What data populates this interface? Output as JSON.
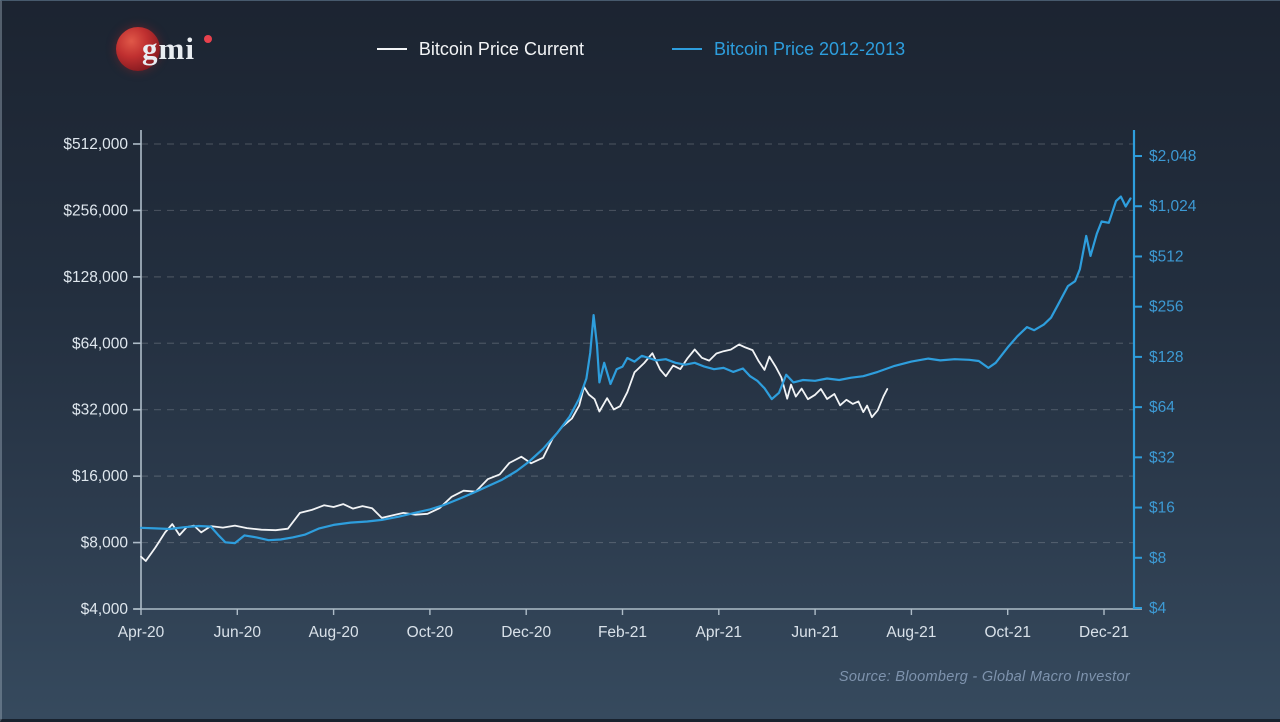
{
  "branding": {
    "logo_text": "gmi"
  },
  "legend": {
    "items": [
      {
        "label": "Bitcoin Price Current",
        "color": "#f2f4f6"
      },
      {
        "label": "Bitcoin Price 2012-2013",
        "color": "#2e9edd"
      }
    ]
  },
  "source_note": "Source: Bloomberg - Global Macro Investor",
  "colors": {
    "background_top": "#1c2431",
    "background_bottom": "#364a5e",
    "gridline": "rgba(255,255,255,0.17)",
    "axis_line": "#aebcc8",
    "right_axis_line": "#2e9edd",
    "left_tick_text": "#dfe7ee",
    "right_tick_text": "#3d9ad4",
    "x_tick_text": "#d9e1e9"
  },
  "chart_data": {
    "type": "line",
    "scale": "log2",
    "grid": "horizontal-dashed",
    "legend_position": "top-center",
    "x_axis": {
      "labels": [
        "Apr-20",
        "Jun-20",
        "Aug-20",
        "Oct-20",
        "Dec-20",
        "Feb-21",
        "Apr-21",
        "Jun-21",
        "Aug-21",
        "Oct-21",
        "Dec-21"
      ],
      "label_month_offsets": [
        0,
        2,
        4,
        6,
        8,
        10,
        12,
        14,
        16,
        18,
        20
      ],
      "months_span": [
        0,
        20.6
      ]
    },
    "left_axis": {
      "unit": "USD (current cycle)",
      "range": [
        4000,
        512000
      ],
      "ticks": [
        {
          "label": "$512,000",
          "value": 512000
        },
        {
          "label": "$256,000",
          "value": 256000
        },
        {
          "label": "$128,000",
          "value": 128000
        },
        {
          "label": "$64,000",
          "value": 64000
        },
        {
          "label": "$32,000",
          "value": 32000
        },
        {
          "label": "$16,000",
          "value": 16000
        },
        {
          "label": "$8,000",
          "value": 8000
        },
        {
          "label": "$4,000",
          "value": 4000
        }
      ]
    },
    "right_axis": {
      "unit": "USD (2012-2013 cycle)",
      "range": [
        4,
        2048
      ],
      "ticks": [
        {
          "label": "$2,048",
          "value": 2048
        },
        {
          "label": "$1,024",
          "value": 1024
        },
        {
          "label": "$512",
          "value": 512
        },
        {
          "label": "$256",
          "value": 256
        },
        {
          "label": "$128",
          "value": 128
        },
        {
          "label": "$64",
          "value": 64
        },
        {
          "label": "$32",
          "value": 32
        },
        {
          "label": "$16",
          "value": 16
        },
        {
          "label": "$8",
          "value": 8
        },
        {
          "label": "$4",
          "value": 4
        }
      ]
    },
    "series": [
      {
        "name": "Bitcoin Price Current",
        "axis": "left",
        "color": "#f2f4f6",
        "width": 1.8,
        "points": [
          [
            0,
            6900
          ],
          [
            0.1,
            6600
          ],
          [
            0.3,
            7600
          ],
          [
            0.5,
            8900
          ],
          [
            0.65,
            9700
          ],
          [
            0.8,
            8650
          ],
          [
            0.95,
            9400
          ],
          [
            1.1,
            9550
          ],
          [
            1.25,
            8900
          ],
          [
            1.45,
            9500
          ],
          [
            1.7,
            9350
          ],
          [
            1.95,
            9550
          ],
          [
            2.2,
            9300
          ],
          [
            2.5,
            9150
          ],
          [
            2.8,
            9100
          ],
          [
            3.05,
            9250
          ],
          [
            3.3,
            10900
          ],
          [
            3.55,
            11250
          ],
          [
            3.8,
            11800
          ],
          [
            4.0,
            11600
          ],
          [
            4.2,
            11950
          ],
          [
            4.4,
            11400
          ],
          [
            4.6,
            11700
          ],
          [
            4.8,
            11450
          ],
          [
            5.0,
            10350
          ],
          [
            5.2,
            10600
          ],
          [
            5.45,
            10900
          ],
          [
            5.7,
            10700
          ],
          [
            5.95,
            10800
          ],
          [
            6.2,
            11450
          ],
          [
            6.45,
            12900
          ],
          [
            6.7,
            13750
          ],
          [
            6.95,
            13600
          ],
          [
            7.2,
            15500
          ],
          [
            7.45,
            16300
          ],
          [
            7.65,
            18350
          ],
          [
            7.9,
            19600
          ],
          [
            8.1,
            18300
          ],
          [
            8.35,
            19400
          ],
          [
            8.55,
            23700
          ],
          [
            8.75,
            26800
          ],
          [
            8.95,
            29200
          ],
          [
            9.1,
            33400
          ],
          [
            9.2,
            40600
          ],
          [
            9.3,
            37500
          ],
          [
            9.42,
            35700
          ],
          [
            9.52,
            31400
          ],
          [
            9.68,
            36100
          ],
          [
            9.82,
            32100
          ],
          [
            9.95,
            33200
          ],
          [
            10.1,
            38400
          ],
          [
            10.25,
            47300
          ],
          [
            10.45,
            52100
          ],
          [
            10.62,
            57700
          ],
          [
            10.78,
            48700
          ],
          [
            10.9,
            45400
          ],
          [
            11.05,
            50700
          ],
          [
            11.2,
            48900
          ],
          [
            11.35,
            54700
          ],
          [
            11.5,
            60000
          ],
          [
            11.65,
            55000
          ],
          [
            11.8,
            53400
          ],
          [
            11.95,
            57500
          ],
          [
            12.1,
            58900
          ],
          [
            12.25,
            59900
          ],
          [
            12.42,
            63200
          ],
          [
            12.55,
            61300
          ],
          [
            12.7,
            59600
          ],
          [
            12.82,
            53400
          ],
          [
            12.95,
            48500
          ],
          [
            13.05,
            55700
          ],
          [
            13.18,
            50200
          ],
          [
            13.3,
            44800
          ],
          [
            13.42,
            35900
          ],
          [
            13.5,
            41600
          ],
          [
            13.6,
            36700
          ],
          [
            13.72,
            39900
          ],
          [
            13.85,
            35700
          ],
          [
            14.0,
            37400
          ],
          [
            14.12,
            39700
          ],
          [
            14.25,
            35800
          ],
          [
            14.4,
            37700
          ],
          [
            14.52,
            33500
          ],
          [
            14.65,
            35500
          ],
          [
            14.78,
            34000
          ],
          [
            14.9,
            34900
          ],
          [
            15.0,
            31200
          ],
          [
            15.08,
            33400
          ],
          [
            15.18,
            29600
          ],
          [
            15.3,
            31800
          ],
          [
            15.42,
            36800
          ],
          [
            15.5,
            39700
          ]
        ]
      },
      {
        "name": "Bitcoin Price 2012-2013",
        "axis": "right",
        "color": "#2e9edd",
        "width": 2.2,
        "points": [
          [
            0,
            12.1
          ],
          [
            0.3,
            12.0
          ],
          [
            0.6,
            11.9
          ],
          [
            0.9,
            12.2
          ],
          [
            1.2,
            12.4
          ],
          [
            1.45,
            12.3
          ],
          [
            1.6,
            11.0
          ],
          [
            1.75,
            9.9
          ],
          [
            1.95,
            9.8
          ],
          [
            2.15,
            10.9
          ],
          [
            2.4,
            10.6
          ],
          [
            2.65,
            10.2
          ],
          [
            2.9,
            10.3
          ],
          [
            3.15,
            10.6
          ],
          [
            3.4,
            11.0
          ],
          [
            3.7,
            12.0
          ],
          [
            4.0,
            12.6
          ],
          [
            4.35,
            13.0
          ],
          [
            4.7,
            13.2
          ],
          [
            5.0,
            13.5
          ],
          [
            5.35,
            14.1
          ],
          [
            5.7,
            14.9
          ],
          [
            6.0,
            15.6
          ],
          [
            6.3,
            16.6
          ],
          [
            6.6,
            18.0
          ],
          [
            6.9,
            19.6
          ],
          [
            7.2,
            21.5
          ],
          [
            7.5,
            23.5
          ],
          [
            7.8,
            26.5
          ],
          [
            8.05,
            30.0
          ],
          [
            8.35,
            36.0
          ],
          [
            8.65,
            45.0
          ],
          [
            8.9,
            56.0
          ],
          [
            9.1,
            72.0
          ],
          [
            9.25,
            95.0
          ],
          [
            9.33,
            135.0
          ],
          [
            9.4,
            228.0
          ],
          [
            9.47,
            150.0
          ],
          [
            9.52,
            90.0
          ],
          [
            9.62,
            118.0
          ],
          [
            9.75,
            88.0
          ],
          [
            9.88,
            108.0
          ],
          [
            10.0,
            112.0
          ],
          [
            10.1,
            126.0
          ],
          [
            10.25,
            120.0
          ],
          [
            10.4,
            130.0
          ],
          [
            10.55,
            126.0
          ],
          [
            10.7,
            122.0
          ],
          [
            10.9,
            124.0
          ],
          [
            11.1,
            118.0
          ],
          [
            11.3,
            115.0
          ],
          [
            11.5,
            118.0
          ],
          [
            11.7,
            112.0
          ],
          [
            11.9,
            108.0
          ],
          [
            12.1,
            110.0
          ],
          [
            12.3,
            104.0
          ],
          [
            12.5,
            109.0
          ],
          [
            12.65,
            98.0
          ],
          [
            12.8,
            92.0
          ],
          [
            12.95,
            83.0
          ],
          [
            13.1,
            71.5
          ],
          [
            13.25,
            78.0
          ],
          [
            13.4,
            100.0
          ],
          [
            13.55,
            90.0
          ],
          [
            13.75,
            93.0
          ],
          [
            14.0,
            92.0
          ],
          [
            14.25,
            95.0
          ],
          [
            14.5,
            93.0
          ],
          [
            14.75,
            96.0
          ],
          [
            15.0,
            98.0
          ],
          [
            15.3,
            104.0
          ],
          [
            15.65,
            113.0
          ],
          [
            16.0,
            120.0
          ],
          [
            16.35,
            125.0
          ],
          [
            16.6,
            122.0
          ],
          [
            16.9,
            124.0
          ],
          [
            17.2,
            123.0
          ],
          [
            17.4,
            121.0
          ],
          [
            17.6,
            110.0
          ],
          [
            17.75,
            118.0
          ],
          [
            18.0,
            146.0
          ],
          [
            18.2,
            170.0
          ],
          [
            18.4,
            193.0
          ],
          [
            18.55,
            185.0
          ],
          [
            18.75,
            200.0
          ],
          [
            18.9,
            220.0
          ],
          [
            19.05,
            265.0
          ],
          [
            19.25,
            340.0
          ],
          [
            19.4,
            364.0
          ],
          [
            19.5,
            430.0
          ],
          [
            19.63,
            680.0
          ],
          [
            19.72,
            516.0
          ],
          [
            19.85,
            700.0
          ],
          [
            19.95,
            830.0
          ],
          [
            20.1,
            815.0
          ],
          [
            20.25,
            1100.0
          ],
          [
            20.35,
            1170.0
          ],
          [
            20.45,
            1020.0
          ],
          [
            20.55,
            1140.0
          ]
        ]
      }
    ]
  }
}
